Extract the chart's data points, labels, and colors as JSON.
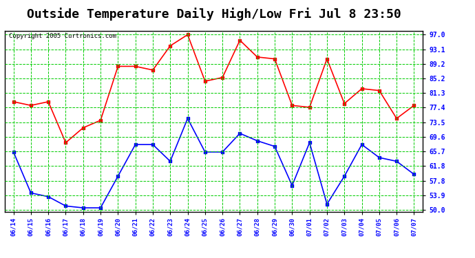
{
  "title": "Outside Temperature Daily High/Low Fri Jul 8 23:50",
  "copyright": "Copyright 2005 Curtronics.com",
  "x_labels": [
    "06/14",
    "06/15",
    "06/16",
    "06/17",
    "06/18",
    "06/19",
    "06/20",
    "06/21",
    "06/22",
    "06/23",
    "06/24",
    "06/25",
    "06/26",
    "06/27",
    "06/28",
    "06/29",
    "06/30",
    "07/01",
    "07/02",
    "07/03",
    "07/04",
    "07/05",
    "07/06",
    "07/07"
  ],
  "high_values": [
    79.0,
    78.0,
    79.0,
    68.0,
    72.0,
    74.0,
    88.5,
    88.5,
    87.5,
    94.0,
    97.0,
    84.5,
    85.5,
    95.5,
    91.0,
    90.5,
    78.0,
    77.5,
    90.5,
    78.5,
    82.5,
    82.0,
    74.5,
    78.0
  ],
  "low_values": [
    65.5,
    54.5,
    53.5,
    51.0,
    50.5,
    50.5,
    59.0,
    67.5,
    67.5,
    63.0,
    74.5,
    65.5,
    65.5,
    70.5,
    68.5,
    67.0,
    56.5,
    68.0,
    51.5,
    59.0,
    67.5,
    64.0,
    63.0,
    59.5
  ],
  "high_color": "#ff0000",
  "low_color": "#0000ff",
  "title_bg_color": "#ffffff",
  "plot_bg_color": "#ffffff",
  "grid_color": "#00cc00",
  "border_color": "#000000",
  "ytick_labels": [
    "97.0",
    "93.1",
    "89.2",
    "85.2",
    "81.3",
    "77.4",
    "73.5",
    "69.6",
    "65.7",
    "61.8",
    "57.8",
    "53.9",
    "50.0"
  ],
  "ytick_values": [
    97.0,
    93.1,
    89.2,
    85.2,
    81.3,
    77.4,
    73.5,
    69.6,
    65.7,
    61.8,
    57.8,
    53.9,
    50.0
  ],
  "ylim": [
    49.5,
    98.0
  ],
  "title_fontsize": 13,
  "marker": "s",
  "marker_size": 3,
  "line_width": 1.2
}
